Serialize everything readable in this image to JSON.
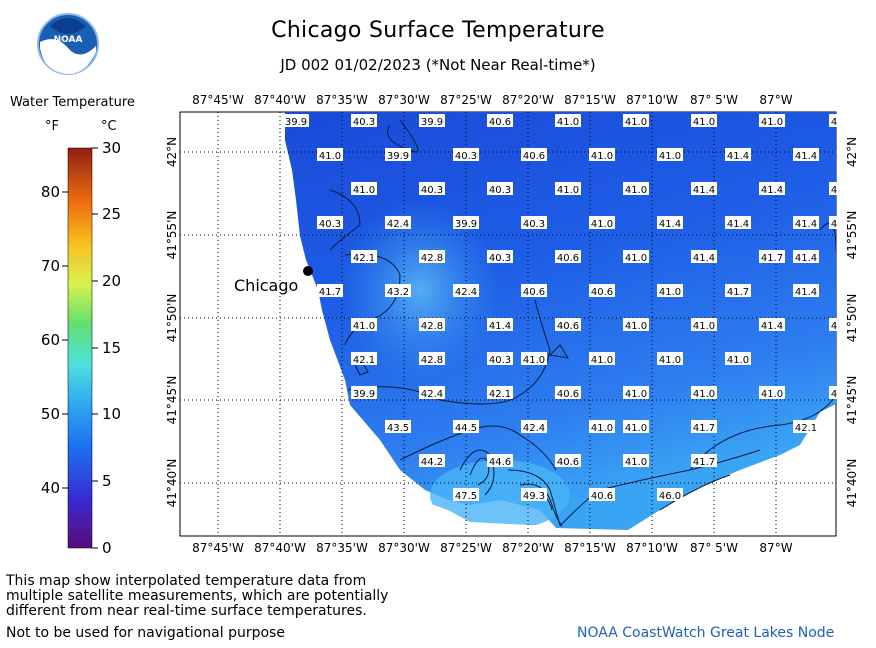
{
  "title": "Chicago Surface Temperature",
  "subtitle": "JD 002 01/02/2023 (*Not Near Real-time*)",
  "logo_text": "NOAA",
  "legend": {
    "title": "Water Temperature",
    "unit_f": "°F",
    "unit_c": "°C",
    "f_ticks": [
      "80",
      "70",
      "60",
      "50",
      "40"
    ],
    "c_ticks": [
      "30",
      "25",
      "20",
      "15",
      "10",
      "5",
      "0"
    ]
  },
  "map": {
    "lon_labels": [
      "87°45'W",
      "87°40'W",
      "87°35'W",
      "87°30'W",
      "87°25'W",
      "87°20'W",
      "87°15'W",
      "87°10'W",
      "87° 5'W",
      "87°W"
    ],
    "lat_labels": [
      "42°N",
      "41°55'N",
      "41°50'N",
      "41°45'N",
      "41°40'N"
    ],
    "city_label": "Chicago",
    "temperature_labels": [
      [
        "39.9",
        "40.3",
        "39.9",
        "40.6",
        "41.0",
        "41.0",
        "41.0",
        "41.0",
        "4"
      ],
      [
        "41.0",
        "39.9",
        "40.3",
        "40.6",
        "41.0",
        "41.0",
        "41.4",
        "41.4"
      ],
      [
        "41.0",
        "40.3",
        "40.3",
        "41.0",
        "41.0",
        "41.4",
        "41.4",
        "4"
      ],
      [
        "40.3",
        "42.4",
        "39.9",
        "40.3",
        "41.0",
        "41.4",
        "41.4",
        "41.4",
        "4"
      ],
      [
        "42.1",
        "42.8",
        "40.3",
        "40.6",
        "41.0",
        "41.4",
        "41.7",
        "41.4"
      ],
      [
        "41.7",
        "43.2",
        "42.4",
        "40.6",
        "40.6",
        "41.0",
        "41.7",
        "41.4"
      ],
      [
        "41.0",
        "42.8",
        "41.4",
        "40.6",
        "41.0",
        "41.0",
        "41.4",
        "4"
      ],
      [
        "42.1",
        "42.8",
        "40.3",
        "41.0",
        "41.0",
        "41.0",
        "41.0"
      ],
      [
        "39.9",
        "42.4",
        "42.1",
        "40.6",
        "41.0",
        "41.0",
        "41.0",
        "4"
      ],
      [
        "43.5",
        "44.5",
        "42.4",
        "41.0",
        "41.0",
        "41.7",
        "42.1"
      ],
      [
        "44.2",
        "44.6",
        "40.6",
        "41.0",
        "41.7"
      ],
      [
        "47.5",
        "49.3",
        "40.6",
        "46.0"
      ]
    ]
  },
  "note": [
    "This map show interpolated temperature data from",
    "multiple satellite measurements, which are potentially",
    "different from near real-time surface temperatures."
  ],
  "nav_warning": "Not to be used for navigational purpose",
  "credit": "NOAA CoastWatch Great Lakes Node"
}
